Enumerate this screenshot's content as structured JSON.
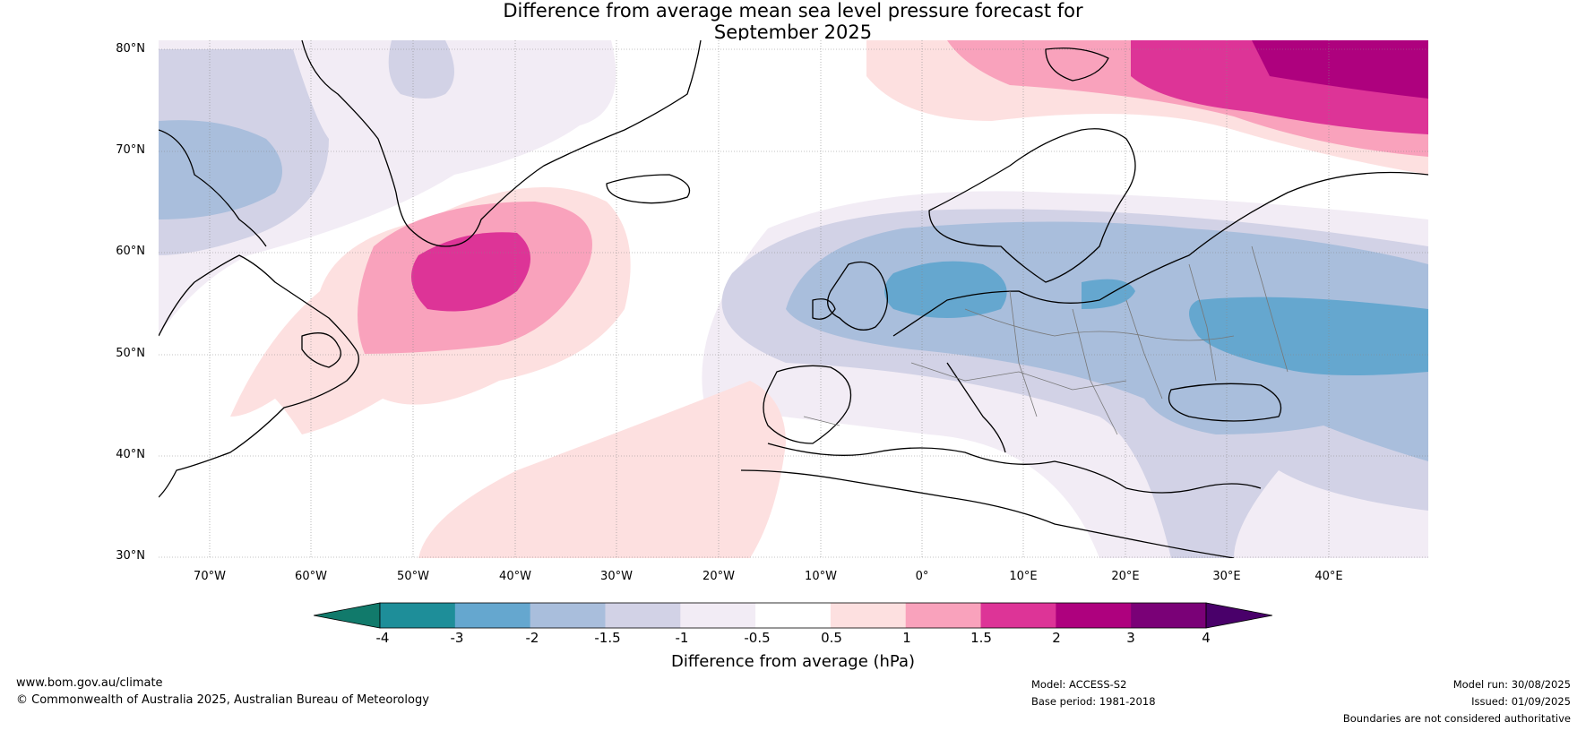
{
  "title_line1": "Difference from average mean sea level pressure forecast for",
  "title_line2": "September 2025",
  "lat_labels": [
    "80°N",
    "70°N",
    "60°N",
    "50°N",
    "40°N",
    "30°N"
  ],
  "lon_labels": [
    "70°W",
    "60°W",
    "50°W",
    "40°W",
    "30°W",
    "20°W",
    "10°W",
    "0°",
    "10°E",
    "20°E",
    "30°E",
    "40°E"
  ],
  "colorbar": {
    "ticks": [
      "-4",
      "-3",
      "-2",
      "-1.5",
      "-1",
      "-0.5",
      "0.5",
      "1",
      "1.5",
      "2",
      "3",
      "4"
    ],
    "colors": [
      "#117a6b",
      "#1e8e99",
      "#65a7cf",
      "#a9bedc",
      "#d2d2e6",
      "#f2ecf5",
      "#ffffff",
      "#fde0e0",
      "#f9a2bc",
      "#dd3497",
      "#ae017e",
      "#7a0177",
      "#49006a"
    ],
    "title": "Difference from average (hPa)"
  },
  "footer": {
    "website": "www.bom.gov.au/climate",
    "copyright": "© Commonwealth of Australia 2025, Australian Bureau of Meteorology",
    "model": "Model: ACCESS-S2",
    "base_period": "Base period: 1981-2018",
    "model_run": "Model run: 30/08/2025",
    "issued": "Issued: 01/09/2025",
    "disclaimer": "Boundaries are not considered authoritative"
  }
}
